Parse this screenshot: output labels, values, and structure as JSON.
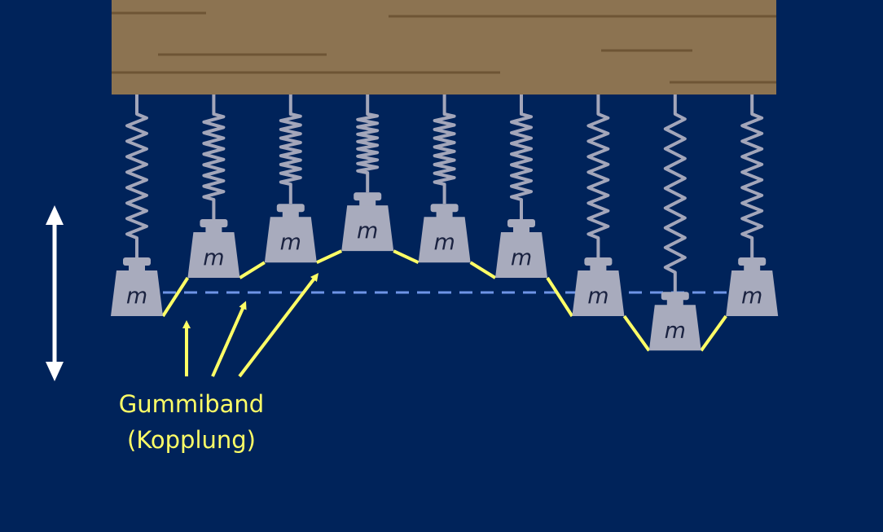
{
  "colors": {
    "background": "#00235a",
    "beam": "#8c7351",
    "beam_grain": "#6e5535",
    "spring": "#a3a6ba",
    "mass": "#a8abbd",
    "mass_text": "#1a2240",
    "coupling": "#ffff66",
    "equilibrium_line": "#6e94e6",
    "motion_arrow": "#ffffff"
  },
  "mass_label": "m",
  "mass_count": 9,
  "mass_displacements": [
    0,
    1,
    1.4,
    1.7,
    1.4,
    1,
    0,
    -0.9,
    0
  ],
  "annotation": {
    "line1": "Gummiband",
    "line2": "(Kopplung)"
  }
}
